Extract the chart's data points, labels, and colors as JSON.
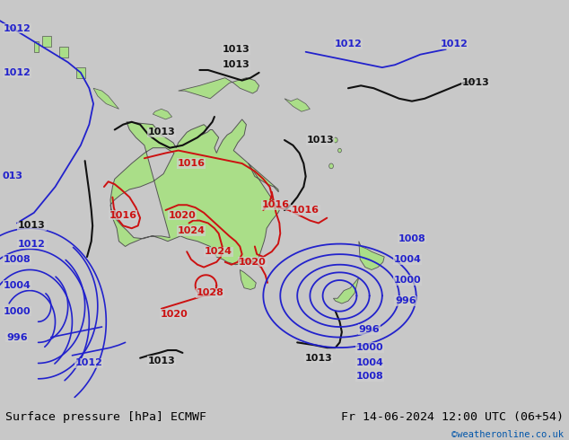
{
  "title_left": "Surface pressure [hPa] ECMWF",
  "title_right": "Fr 14-06-2024 12:00 UTC (06+54)",
  "credit": "©weatheronline.co.uk",
  "credit_color": "#0055aa",
  "bg_color": "#c8c8c8",
  "map_bg": "#d8d8d8",
  "land_color": "#aade88",
  "sea_color": "#d0d0d0",
  "isobar_blue": "#2222cc",
  "isobar_red": "#cc1111",
  "isobar_black": "#111111",
  "font_size_label": 8,
  "font_size_title": 9.5,
  "figsize": [
    6.34,
    4.9
  ],
  "dpi": 100
}
